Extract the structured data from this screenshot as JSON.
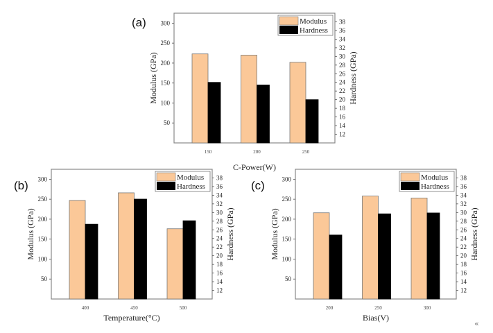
{
  "colors": {
    "modulus": "#FBC898",
    "hardness": "#000000",
    "frame": "#888888"
  },
  "corner_glyph": "«",
  "chart_data": [
    {
      "id": "a",
      "type": "bar",
      "panel_label": "(a)",
      "title": "",
      "xlabel": "C-Power(W)",
      "ylabel": "Modulus (GPa)",
      "y2label": "Hardness (GPa)",
      "categories": [
        "150",
        "200",
        "250"
      ],
      "ylim": [
        0,
        325
      ],
      "y2lim": [
        10,
        40
      ],
      "yticks": [
        50,
        100,
        150,
        200,
        250,
        300
      ],
      "y2ticks": [
        12,
        14,
        16,
        18,
        20,
        22,
        24,
        26,
        28,
        30,
        32,
        34,
        36,
        38
      ],
      "grid": false,
      "legend": {
        "position": "top-right",
        "entries": [
          "Modulus",
          "Hardness"
        ]
      },
      "series": [
        {
          "name": "Modulus",
          "axis": "left",
          "values": [
            223,
            220,
            202
          ]
        },
        {
          "name": "Hardness",
          "axis": "right",
          "values": [
            24.0,
            23.4,
            20.0
          ]
        }
      ]
    },
    {
      "id": "b",
      "type": "bar",
      "panel_label": "(b)",
      "title": "",
      "xlabel": "Temperature(°C)",
      "ylabel": "Modulus (GPa)",
      "y2label": "Hardness (GPa)",
      "categories": [
        "400",
        "450",
        "500"
      ],
      "ylim": [
        0,
        325
      ],
      "y2lim": [
        10,
        40
      ],
      "yticks": [
        50,
        100,
        150,
        200,
        250,
        300
      ],
      "y2ticks": [
        12,
        14,
        16,
        18,
        20,
        22,
        24,
        26,
        28,
        30,
        32,
        34,
        36,
        38
      ],
      "grid": false,
      "legend": {
        "position": "top-right",
        "entries": [
          "Modulus",
          "Hardness"
        ]
      },
      "series": [
        {
          "name": "Modulus",
          "axis": "left",
          "values": [
            247,
            266,
            176
          ]
        },
        {
          "name": "Hardness",
          "axis": "right",
          "values": [
            27.3,
            33.1,
            28.1
          ]
        }
      ]
    },
    {
      "id": "c",
      "type": "bar",
      "panel_label": "(c)",
      "title": "",
      "xlabel": "Bias(V)",
      "ylabel": "Modulus (GPa)",
      "y2label": "Hardness (GPa)",
      "categories": [
        "200",
        "250",
        "300"
      ],
      "ylim": [
        0,
        325
      ],
      "y2lim": [
        10,
        40
      ],
      "yticks": [
        50,
        100,
        150,
        200,
        250,
        300
      ],
      "y2ticks": [
        12,
        14,
        16,
        18,
        20,
        22,
        24,
        26,
        28,
        30,
        32,
        34,
        36,
        38
      ],
      "grid": false,
      "legend": {
        "position": "top-right",
        "entries": [
          "Modulus",
          "Hardness"
        ]
      },
      "series": [
        {
          "name": "Modulus",
          "axis": "left",
          "values": [
            216,
            258,
            253
          ]
        },
        {
          "name": "Hardness",
          "axis": "right",
          "values": [
            24.8,
            29.7,
            29.9
          ]
        }
      ]
    }
  ]
}
